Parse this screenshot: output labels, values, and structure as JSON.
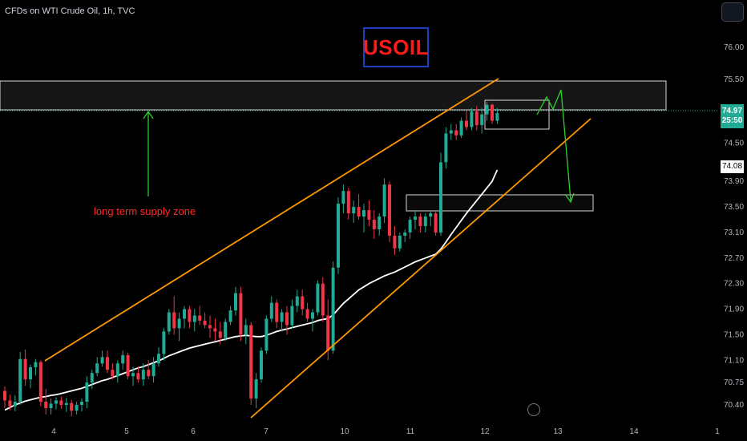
{
  "header": {
    "symbol_title": "CFDs on WTI Crude Oil, 1h, TVC"
  },
  "badge": {
    "text": "USOIL",
    "text_color": "#ff1a1a",
    "border_color": "#1e3fbf"
  },
  "annotation": {
    "zone_label": "long term supply zone",
    "color": "#ff2a2a"
  },
  "price_tag": {
    "price": "74.97",
    "countdown": "25:50",
    "color": "#22ab94"
  },
  "ma_tag": {
    "value": "74.08"
  },
  "colors": {
    "up": "#22ab94",
    "down": "#f23645",
    "channel": "#ff9800",
    "ma": "#ffffff",
    "arrow": "#2ed12e",
    "background": "#000000"
  },
  "chart_data": {
    "type": "candlestick",
    "symbol": "CFDs on WTI Crude Oil",
    "interval": "1h",
    "source": "TVC",
    "ylim": [
      70.2,
      76.3
    ],
    "y_ticks": [
      76.0,
      75.5,
      75.0,
      74.5,
      73.9,
      73.5,
      73.1,
      72.7,
      72.3,
      71.9,
      71.5,
      71.1,
      70.75,
      70.4
    ],
    "x_ticks": [
      "4",
      "5",
      "6",
      "7",
      "10",
      "11",
      "12",
      "13",
      "14",
      "1"
    ],
    "last_price": 74.97,
    "bar_countdown": "25:50",
    "moving_average_last": 74.08,
    "ohlc": [
      [
        70.62,
        70.69,
        70.35,
        70.47
      ],
      [
        70.47,
        70.56,
        70.32,
        70.38
      ],
      [
        70.38,
        70.55,
        70.3,
        70.45
      ],
      [
        70.45,
        71.23,
        70.4,
        71.12
      ],
      [
        71.12,
        71.27,
        70.7,
        70.8
      ],
      [
        70.8,
        71.03,
        70.66,
        70.99
      ],
      [
        70.99,
        71.12,
        70.86,
        71.07
      ],
      [
        71.07,
        71.1,
        70.38,
        70.45
      ],
      [
        70.45,
        70.65,
        70.25,
        70.35
      ],
      [
        70.35,
        70.5,
        70.25,
        70.42
      ],
      [
        70.42,
        70.52,
        70.33,
        70.47
      ],
      [
        70.47,
        70.53,
        70.34,
        70.4
      ],
      [
        70.4,
        70.51,
        70.29,
        70.43
      ],
      [
        70.43,
        70.48,
        70.22,
        70.31
      ],
      [
        70.31,
        70.45,
        70.25,
        70.4
      ],
      [
        70.4,
        70.5,
        70.3,
        70.45
      ],
      [
        70.45,
        70.85,
        70.35,
        70.75
      ],
      [
        70.75,
        70.95,
        70.65,
        70.9
      ],
      [
        70.9,
        71.15,
        70.85,
        71.05
      ],
      [
        71.05,
        71.25,
        71.0,
        71.15
      ],
      [
        71.15,
        71.25,
        70.9,
        70.95
      ],
      [
        70.95,
        71.05,
        70.8,
        70.85
      ],
      [
        70.85,
        71.1,
        70.75,
        71.05
      ],
      [
        71.05,
        71.25,
        70.95,
        71.18
      ],
      [
        71.18,
        71.22,
        70.8,
        70.85
      ],
      [
        70.85,
        71.0,
        70.7,
        70.9
      ],
      [
        70.9,
        71.0,
        70.75,
        70.8
      ],
      [
        70.8,
        71.05,
        70.7,
        70.95
      ],
      [
        70.95,
        71.1,
        70.8,
        70.85
      ],
      [
        70.85,
        71.15,
        70.75,
        71.05
      ],
      [
        71.05,
        71.3,
        71.0,
        71.2
      ],
      [
        71.2,
        71.6,
        71.1,
        71.55
      ],
      [
        71.55,
        71.9,
        71.5,
        71.85
      ],
      [
        71.85,
        72.1,
        71.5,
        71.6
      ],
      [
        71.6,
        71.85,
        71.4,
        71.75
      ],
      [
        71.75,
        71.95,
        71.6,
        71.9
      ],
      [
        71.9,
        71.95,
        71.6,
        71.7
      ],
      [
        71.7,
        71.9,
        71.55,
        71.8
      ],
      [
        71.8,
        71.95,
        71.65,
        71.72
      ],
      [
        71.72,
        71.85,
        71.6,
        71.65
      ],
      [
        71.65,
        71.8,
        71.45,
        71.6
      ],
      [
        71.6,
        71.75,
        71.4,
        71.55
      ],
      [
        71.55,
        71.7,
        71.35,
        71.45
      ],
      [
        71.45,
        71.75,
        71.4,
        71.7
      ],
      [
        71.7,
        71.95,
        71.65,
        71.88
      ],
      [
        71.88,
        72.25,
        71.8,
        72.15
      ],
      [
        72.15,
        72.25,
        71.4,
        71.5
      ],
      [
        71.5,
        71.75,
        71.35,
        71.65
      ],
      [
        71.65,
        71.7,
        70.4,
        70.5
      ],
      [
        70.5,
        70.9,
        70.35,
        70.8
      ],
      [
        70.8,
        71.3,
        70.75,
        71.25
      ],
      [
        71.25,
        71.8,
        71.2,
        71.75
      ],
      [
        71.75,
        72.1,
        71.7,
        72.0
      ],
      [
        72.0,
        72.05,
        71.6,
        71.7
      ],
      [
        71.7,
        71.9,
        71.55,
        71.85
      ],
      [
        71.85,
        71.95,
        71.5,
        71.65
      ],
      [
        71.65,
        72.05,
        71.6,
        71.95
      ],
      [
        71.95,
        72.2,
        71.85,
        72.1
      ],
      [
        72.1,
        72.2,
        71.8,
        71.9
      ],
      [
        71.9,
        72.0,
        71.7,
        71.75
      ],
      [
        71.75,
        71.9,
        71.55,
        71.85
      ],
      [
        71.85,
        72.35,
        71.8,
        72.3
      ],
      [
        72.3,
        72.4,
        71.7,
        71.8
      ],
      [
        71.8,
        72.05,
        71.1,
        71.25
      ],
      [
        71.25,
        72.65,
        71.2,
        72.55
      ],
      [
        72.55,
        73.65,
        72.45,
        73.55
      ],
      [
        73.55,
        73.85,
        73.4,
        73.75
      ],
      [
        73.75,
        73.8,
        73.3,
        73.4
      ],
      [
        73.4,
        73.6,
        73.25,
        73.5
      ],
      [
        73.5,
        73.7,
        73.3,
        73.35
      ],
      [
        73.35,
        73.55,
        73.1,
        73.45
      ],
      [
        73.45,
        73.6,
        73.2,
        73.3
      ],
      [
        73.3,
        73.45,
        73.0,
        73.15
      ],
      [
        73.15,
        73.4,
        73.05,
        73.35
      ],
      [
        73.35,
        73.95,
        73.25,
        73.85
      ],
      [
        73.85,
        73.9,
        72.95,
        73.05
      ],
      [
        73.05,
        73.2,
        72.75,
        72.85
      ],
      [
        72.85,
        73.1,
        72.8,
        73.05
      ],
      [
        73.05,
        73.15,
        72.95,
        73.1
      ],
      [
        73.1,
        73.35,
        73.0,
        73.3
      ],
      [
        73.3,
        73.45,
        73.15,
        73.35
      ],
      [
        73.35,
        73.4,
        73.1,
        73.2
      ],
      [
        73.2,
        73.4,
        73.1,
        73.35
      ],
      [
        73.35,
        73.45,
        73.2,
        73.4
      ],
      [
        73.4,
        73.45,
        73.05,
        73.1
      ],
      [
        73.1,
        74.35,
        73.05,
        74.2
      ],
      [
        74.2,
        74.75,
        74.1,
        74.65
      ],
      [
        74.65,
        74.8,
        74.55,
        74.7
      ],
      [
        74.7,
        74.8,
        74.55,
        74.62
      ],
      [
        74.62,
        74.9,
        74.58,
        74.85
      ],
      [
        74.85,
        75.0,
        74.7,
        74.75
      ],
      [
        74.75,
        75.05,
        74.7,
        75.0
      ],
      [
        75.0,
        75.08,
        74.7,
        74.78
      ],
      [
        74.78,
        75.05,
        74.65,
        74.95
      ],
      [
        74.95,
        75.15,
        74.85,
        75.1
      ],
      [
        75.1,
        75.12,
        74.8,
        74.85
      ],
      [
        74.85,
        75.05,
        74.8,
        74.97
      ]
    ],
    "moving_average": [
      70.32,
      70.36,
      70.4,
      70.43,
      70.46,
      70.48,
      70.5,
      70.52,
      70.53,
      70.55,
      70.56,
      70.58,
      70.6,
      70.62,
      70.64,
      70.66,
      70.69,
      70.72,
      70.75,
      70.78,
      70.8,
      70.83,
      70.86,
      70.89,
      70.92,
      70.95,
      70.98,
      71.0,
      71.03,
      71.06,
      71.09,
      71.13,
      71.17,
      71.2,
      71.23,
      71.26,
      71.29,
      71.31,
      71.33,
      71.35,
      71.37,
      71.39,
      71.41,
      71.43,
      71.45,
      71.47,
      71.48,
      71.49,
      71.48,
      71.47,
      71.47,
      71.49,
      71.52,
      71.55,
      71.57,
      71.59,
      71.61,
      71.63,
      71.65,
      71.67,
      71.69,
      71.72,
      71.74,
      71.75,
      71.81,
      71.9,
      71.99,
      72.06,
      72.13,
      72.2,
      72.25,
      72.3,
      72.34,
      72.38,
      72.42,
      72.45,
      72.48,
      72.52,
      72.56,
      72.6,
      72.64,
      72.67,
      72.7,
      72.73,
      72.76,
      72.84,
      72.95,
      73.07,
      73.18,
      73.29,
      73.4,
      73.5,
      73.6,
      73.7,
      73.8,
      73.9,
      74.08
    ]
  }
}
